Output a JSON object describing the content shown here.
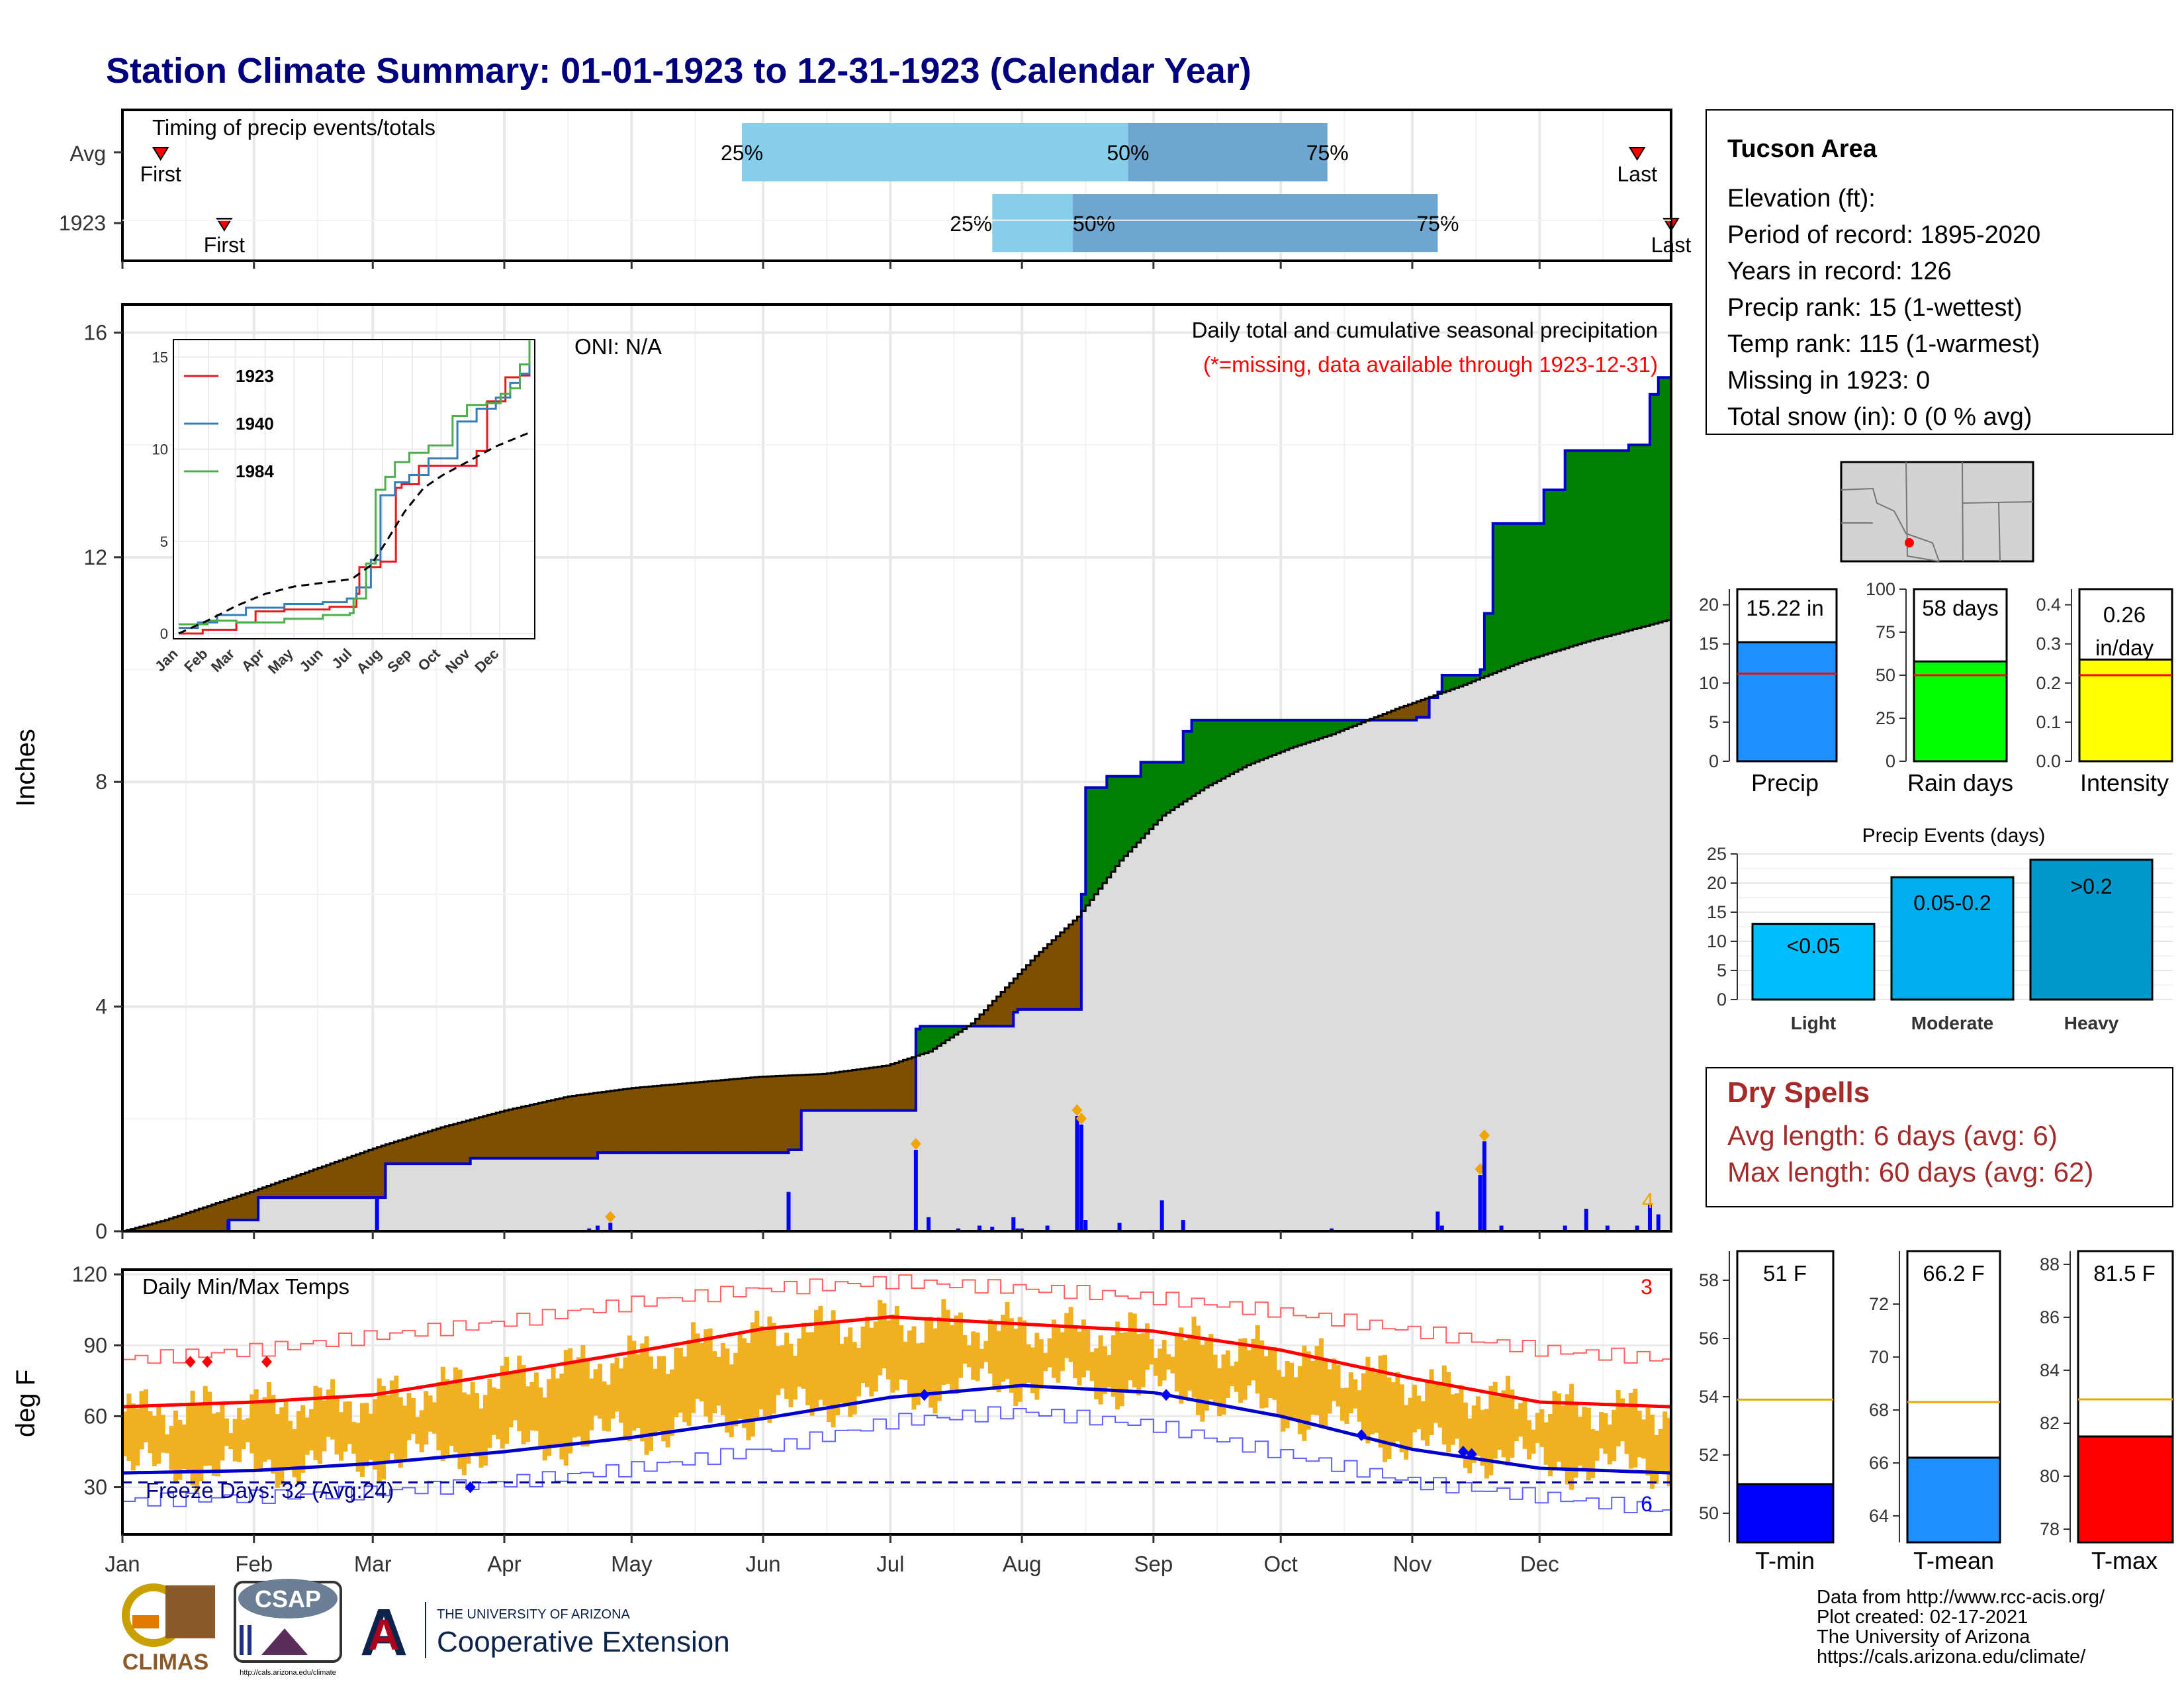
{
  "title": "Station Climate Summary: 01-01-1923 to 12-31-1923 (Calendar Year)",
  "months": [
    "Jan",
    "Feb",
    "Mar",
    "Apr",
    "May",
    "Jun",
    "Jul",
    "Aug",
    "Sep",
    "Oct",
    "Nov",
    "Dec"
  ],
  "colors": {
    "title": "#00007f",
    "wet": "#008000",
    "dry": "#7f4f00",
    "grey": "#dcdcdc",
    "blue": "#0000ff",
    "red": "#ff0000",
    "orange": "#f0a500",
    "tempbar": "#f0b020"
  },
  "timing": {
    "label": "Timing of precip events/totals",
    "rows": [
      {
        "label": "Avg",
        "first_label": "First",
        "last_label": "Last",
        "first_doy": 9,
        "last_doy": 357,
        "p25": 146,
        "p50": 237,
        "p75": 284,
        "p25_label": "25%",
        "p50_label": "50%",
        "p75_label": "75%"
      },
      {
        "label": "1923",
        "first_label": "First",
        "last_label": "Last",
        "first_doy": 24,
        "last_doy": 365,
        "p25": 205,
        "p50": 224,
        "p75": 310,
        "p25_label": "25%",
        "p50_label": "50%",
        "p75_label": "75%"
      }
    ]
  },
  "precip_panel": {
    "ylabel": "Inches",
    "yticks": [
      0,
      4,
      8,
      12,
      16
    ],
    "ymax": 16.5,
    "oni": "ONI: N/A",
    "note1": "Daily total and cumulative seasonal precipitation",
    "note2": "(*=missing, data available through 1923-12-31)",
    "corner_count": "4"
  },
  "chart_data": [
    {
      "type": "area",
      "name": "cumulative",
      "xlabel": "",
      "ylabel": "Inches",
      "ylim": [
        0,
        16.5
      ],
      "series": [
        {
          "name": "observed",
          "x": [
            0,
            25,
            32,
            60,
            62,
            80,
            82,
            110,
            112,
            157,
            160,
            185,
            187,
            188,
            210,
            211,
            225,
            226,
            227,
            232,
            233,
            240,
            242,
            250,
            252,
            285,
            305,
            308,
            310,
            311,
            320,
            321,
            323,
            330,
            335,
            338,
            340,
            345,
            355,
            360,
            362,
            365
          ],
          "y": [
            0,
            0.2,
            0.6,
            0.6,
            1.2,
            1.2,
            1.3,
            1.3,
            1.4,
            1.45,
            2.15,
            2.15,
            3.6,
            3.65,
            3.9,
            3.95,
            3.95,
            6.0,
            7.9,
            8.1,
            8.1,
            8.35,
            8.35,
            8.9,
            9.1,
            9.1,
            9.15,
            9.5,
            9.6,
            9.9,
            10.0,
            11.0,
            12.6,
            12.6,
            13.2,
            13.2,
            13.9,
            13.9,
            14.0,
            14.9,
            15.2,
            15.22
          ]
        },
        {
          "name": "average",
          "x": [
            0,
            10,
            30,
            45,
            60,
            75,
            90,
            105,
            120,
            135,
            150,
            165,
            180,
            190,
            200,
            210,
            215,
            225,
            235,
            245,
            255,
            265,
            275,
            285,
            300,
            315,
            330,
            345,
            365
          ],
          "y": [
            0,
            0.2,
            0.7,
            1.1,
            1.5,
            1.85,
            2.15,
            2.4,
            2.55,
            2.65,
            2.75,
            2.8,
            2.95,
            3.2,
            3.7,
            4.5,
            4.9,
            5.6,
            6.6,
            7.4,
            7.9,
            8.3,
            8.6,
            8.85,
            9.3,
            9.7,
            10.15,
            10.5,
            10.9
          ]
        }
      ]
    },
    {
      "type": "bar",
      "name": "daily_precip",
      "xlabel": "",
      "ylabel": "Inches",
      "x": [
        25,
        60,
        110,
        112,
        115,
        157,
        185,
        187,
        190,
        197,
        202,
        205,
        210,
        211,
        212,
        218,
        225,
        226,
        227,
        235,
        245,
        250,
        285,
        310,
        311,
        320,
        321,
        325,
        340,
        345,
        350,
        357,
        360,
        362
      ],
      "values": [
        0.2,
        0.6,
        0.05,
        0.1,
        0.15,
        0.7,
        0.02,
        1.45,
        0.25,
        0.05,
        0.1,
        0.08,
        0.25,
        0.05,
        0.05,
        0.1,
        2.05,
        1.9,
        0.2,
        0.15,
        0.55,
        0.2,
        0.05,
        0.35,
        0.1,
        1.0,
        1.6,
        0.1,
        0.1,
        0.4,
        0.1,
        0.1,
        0.5,
        0.3
      ]
    },
    {
      "type": "line",
      "name": "inset_cumulative",
      "title": "",
      "ylim": [
        0,
        16
      ],
      "series": [
        {
          "name": "1923",
          "x": [
            0,
            25,
            60,
            80,
            110,
            157,
            185,
            188,
            210,
            226,
            232,
            250,
            285,
            310,
            321,
            330,
            340,
            355,
            365
          ],
          "y": [
            0,
            0.2,
            0.6,
            1.2,
            1.3,
            1.45,
            2.15,
            3.6,
            3.9,
            7.9,
            8.1,
            9.1,
            9.1,
            9.9,
            12.6,
            12.6,
            13.9,
            14.0,
            15.22
          ]
        },
        {
          "name": "1940",
          "x": [
            0,
            20,
            40,
            70,
            110,
            150,
            175,
            185,
            200,
            210,
            225,
            240,
            260,
            290,
            310,
            330,
            345,
            355,
            365
          ],
          "y": [
            0.3,
            0.6,
            1.0,
            1.4,
            1.6,
            1.7,
            1.9,
            2.5,
            4.0,
            7.5,
            8.2,
            8.6,
            9.5,
            11.5,
            12.2,
            12.8,
            13.6,
            14.1,
            14.8
          ]
        },
        {
          "name": "1984",
          "x": [
            0,
            30,
            60,
            110,
            150,
            178,
            182,
            195,
            205,
            215,
            225,
            240,
            260,
            285,
            300,
            320,
            335,
            345,
            355,
            365
          ],
          "y": [
            0.5,
            0.7,
            0.6,
            0.8,
            1.0,
            1.1,
            1.9,
            3.8,
            7.8,
            8.5,
            9.3,
            9.8,
            10.2,
            11.8,
            12.4,
            12.5,
            13.0,
            13.3,
            14.6,
            15.9
          ]
        },
        {
          "name": "avg",
          "x": [
            0,
            30,
            60,
            90,
            120,
            150,
            180,
            200,
            215,
            235,
            255,
            275,
            300,
            330,
            365
          ],
          "y": [
            0,
            0.7,
            1.5,
            2.15,
            2.55,
            2.75,
            2.95,
            3.7,
            4.9,
            6.6,
            7.9,
            8.6,
            9.3,
            10.15,
            10.9
          ]
        }
      ]
    },
    {
      "type": "line",
      "name": "daily_temps",
      "ylabel": "deg F",
      "ylim": [
        10,
        122
      ],
      "series": [
        {
          "name": "avg_max",
          "x": [
            0,
            31,
            59,
            90,
            120,
            151,
            181,
            212,
            243,
            273,
            304,
            334,
            365
          ],
          "y": [
            64,
            66,
            69,
            78,
            87,
            97,
            102,
            99,
            96,
            88,
            76,
            66,
            64
          ]
        },
        {
          "name": "avg_min",
          "x": [
            0,
            31,
            59,
            90,
            120,
            151,
            181,
            212,
            243,
            273,
            304,
            334,
            365
          ],
          "y": [
            36,
            37,
            40,
            45,
            51,
            59,
            68,
            73,
            70,
            60,
            46,
            38,
            36
          ]
        },
        {
          "name": "record_max",
          "x": [
            0,
            31,
            59,
            90,
            120,
            151,
            181,
            212,
            243,
            273,
            304,
            334,
            365
          ],
          "y": [
            84,
            88,
            94,
            100,
            108,
            114,
            117,
            114,
            110,
            104,
            96,
            88,
            84
          ]
        },
        {
          "name": "record_min",
          "x": [
            0,
            31,
            59,
            90,
            120,
            151,
            181,
            212,
            243,
            273,
            304,
            334,
            365
          ],
          "y": [
            24,
            26,
            28,
            32,
            38,
            46,
            58,
            62,
            56,
            44,
            32,
            26,
            20
          ]
        }
      ]
    },
    {
      "type": "bar",
      "name": "summary_precip_bars",
      "categories": [
        "Precip",
        "Rain days",
        "Intensity"
      ],
      "values": [
        15.22,
        58,
        0.26
      ],
      "averages": [
        11.2,
        50,
        0.22
      ]
    },
    {
      "type": "bar",
      "name": "precip_events",
      "title": "Precip Events (days)",
      "categories": [
        "Light",
        "Moderate",
        "Heavy"
      ],
      "labels": [
        "<0.05",
        "0.05-0.2",
        ">0.2"
      ],
      "values": [
        13,
        21,
        24
      ],
      "ylim": [
        0,
        25
      ]
    },
    {
      "type": "bar",
      "name": "temp_bars",
      "categories": [
        "T-min",
        "T-mean",
        "T-max"
      ],
      "values": [
        51,
        66.2,
        81.5
      ],
      "averages": [
        53.9,
        68.3,
        82.9
      ]
    }
  ],
  "inset": {
    "yticks": [
      0,
      5,
      10,
      15
    ],
    "legend": [
      {
        "name": "1923",
        "color": "#e41a1c"
      },
      {
        "name": "1940",
        "color": "#377eb8"
      },
      {
        "name": "1984",
        "color": "#4daf4a"
      }
    ]
  },
  "temp_panel": {
    "label": "Daily Min/Max Temps",
    "ylabel": "deg F",
    "yticks": [
      30,
      60,
      90,
      120
    ],
    "freeze_label": "Freeze Days: 32 (Avg:24)",
    "freeze_line": 32,
    "record_high_count": "3",
    "record_low_count": "6"
  },
  "info_box": {
    "station": "Tucson Area",
    "lines": [
      "Elevation (ft):",
      "Period of record: 1895-2020",
      "Years in record: 126",
      "Precip rank: 15 (1-wettest)",
      "Temp rank: 115 (1-warmest)",
      "Missing in 1923: 0",
      "Total snow (in): 0 (0 % avg)"
    ]
  },
  "summary_bars": [
    {
      "label": "Precip",
      "value_label": "15.22 in",
      "color": "#1e90ff",
      "yticks": [
        0,
        5,
        10,
        15,
        20
      ],
      "ymax": 22
    },
    {
      "label": "Rain days",
      "value_label": "58 days",
      "color": "#00ff00",
      "yticks": [
        0,
        25,
        50,
        75,
        100
      ],
      "ymax": 100
    },
    {
      "label": "Intensity",
      "value_label": "0.26",
      "value_label2": "in/day",
      "color": "#ffff00",
      "yticks": [
        "0.0",
        "0.1",
        "0.2",
        "0.3",
        "0.4"
      ],
      "ytick_vals": [
        0,
        0.1,
        0.2,
        0.3,
        0.4
      ],
      "ymax": 0.44
    }
  ],
  "events_colors": [
    "#00bfff",
    "#00aeee",
    "#0099cc"
  ],
  "dry_spells": {
    "title": "Dry Spells",
    "line1": "Avg length: 6 days (avg: 6)",
    "line2": "Max length: 60 days (avg: 62)"
  },
  "temp_bars": [
    {
      "label": "T-min",
      "value_label": "51 F",
      "color": "#0000ff",
      "yticks": [
        50,
        52,
        54,
        56,
        58
      ],
      "ylim": [
        49,
        59
      ]
    },
    {
      "label": "T-mean",
      "value_label": "66.2 F",
      "color": "#1e90ff",
      "yticks": [
        64,
        66,
        68,
        70,
        72
      ],
      "ylim": [
        63,
        74
      ]
    },
    {
      "label": "T-max",
      "value_label": "81.5 F",
      "color": "#ff0000",
      "yticks": [
        78,
        80,
        82,
        84,
        86,
        88
      ],
      "ylim": [
        77.5,
        88.5
      ]
    }
  ],
  "footer": {
    "climas": "CLIMAS",
    "csap": "CSAP",
    "csap_url": "http://cals.arizona.edu/climate",
    "ua_small": "THE UNIVERSITY OF ARIZONA",
    "ua_big": "Cooperative Extension",
    "credits": [
      "Data from http://www.rcc-acis.org/",
      "Plot created: 02-17-2021",
      "The University of Arizona",
      "https://cals.arizona.edu/climate/"
    ]
  }
}
